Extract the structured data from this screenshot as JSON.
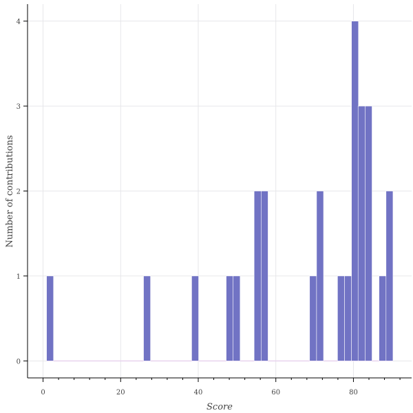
{
  "chart_data": {
    "type": "bar",
    "title": "",
    "xlabel": "Score",
    "ylabel": "Number of contributions",
    "xlim": [
      -4,
      95
    ],
    "ylim": [
      -0.2,
      4.2
    ],
    "x_ticks": [
      0,
      20,
      40,
      60,
      80
    ],
    "y_ticks": [
      0,
      1,
      2,
      3,
      4
    ],
    "grid": true,
    "legend": "none",
    "bar_color": "#7173c4",
    "baseline_color": "#e9d3ee",
    "bin_width": 1.8,
    "bins": [
      {
        "x": 1.8,
        "value": 1
      },
      {
        "x": 26.8,
        "value": 1
      },
      {
        "x": 39.2,
        "value": 1
      },
      {
        "x": 48.1,
        "value": 1
      },
      {
        "x": 49.9,
        "value": 1
      },
      {
        "x": 55.3,
        "value": 2
      },
      {
        "x": 57.1,
        "value": 2
      },
      {
        "x": 69.6,
        "value": 1
      },
      {
        "x": 71.4,
        "value": 2
      },
      {
        "x": 76.8,
        "value": 1
      },
      {
        "x": 78.6,
        "value": 1
      },
      {
        "x": 80.4,
        "value": 4
      },
      {
        "x": 82.1,
        "value": 3
      },
      {
        "x": 83.9,
        "value": 3
      },
      {
        "x": 87.5,
        "value": 1
      },
      {
        "x": 89.3,
        "value": 2
      }
    ]
  }
}
